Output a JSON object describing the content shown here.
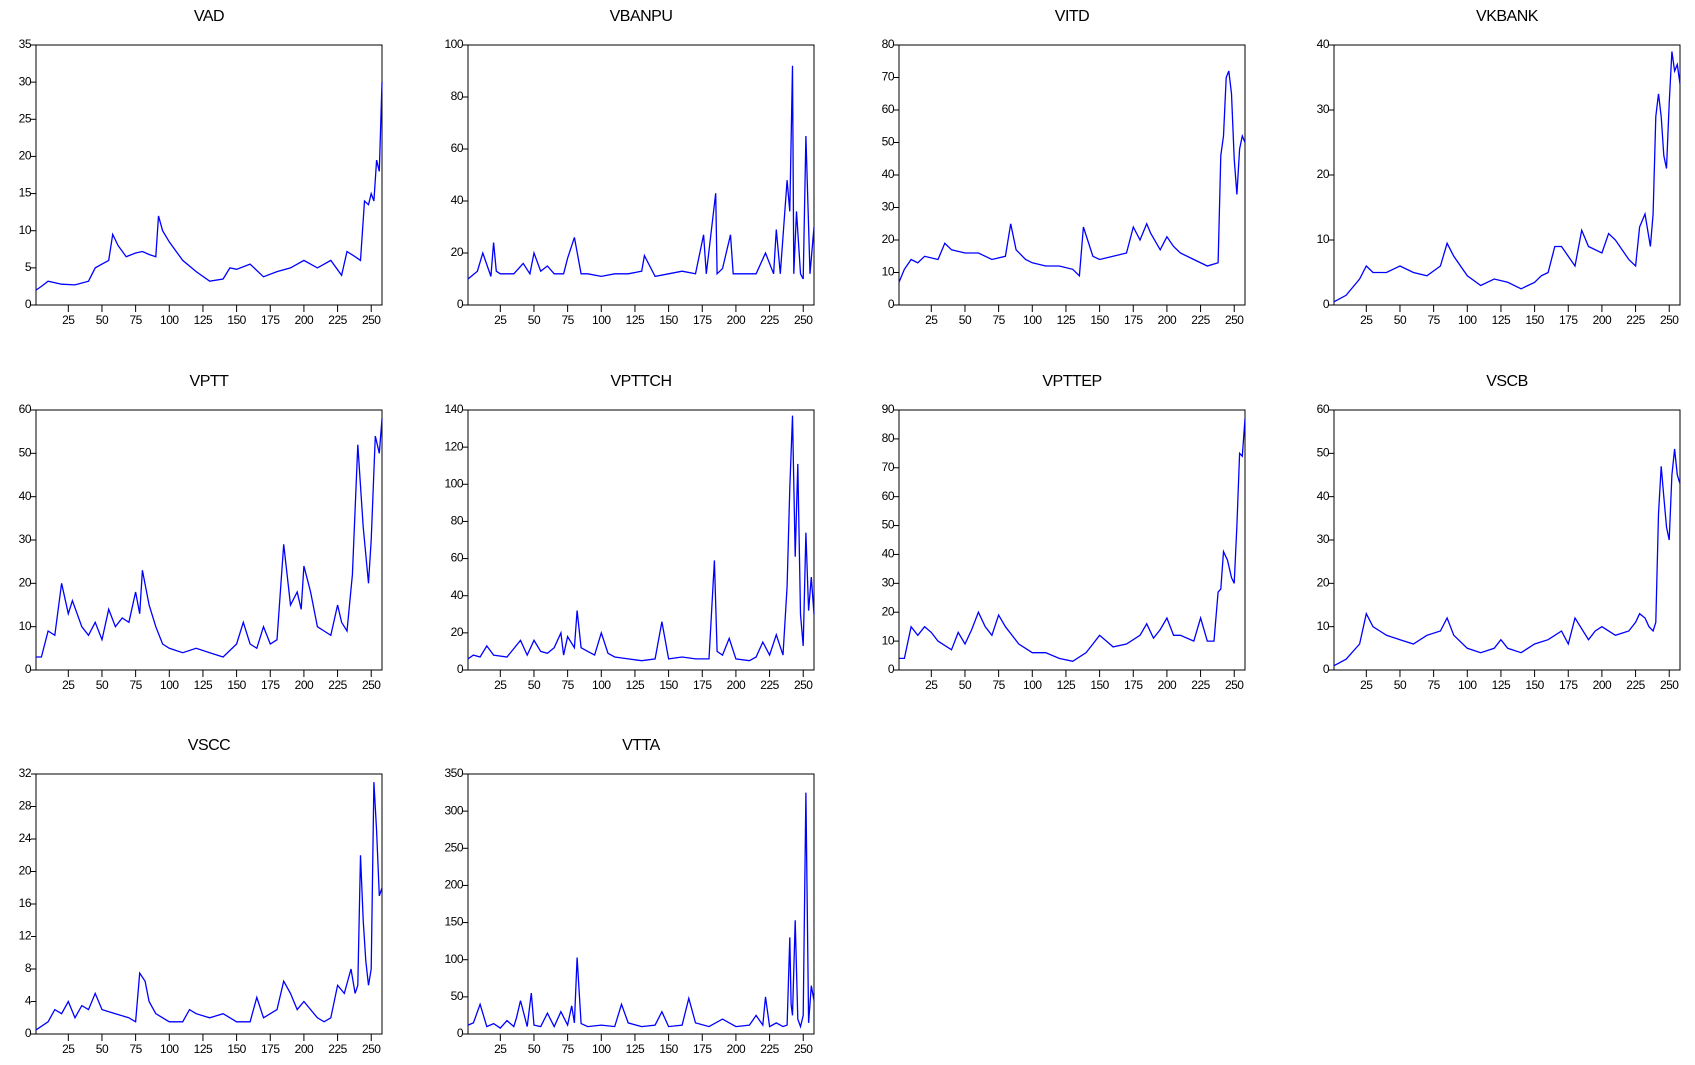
{
  "chart_data": [
    {
      "type": "line",
      "title": "VAD",
      "color": "#0000ff",
      "xlim": [
        1,
        258
      ],
      "xticks": [
        25,
        50,
        75,
        100,
        125,
        150,
        175,
        200,
        225,
        250
      ],
      "ylim": [
        0,
        35
      ],
      "yticks": [
        0,
        5,
        10,
        15,
        20,
        25,
        30,
        35
      ],
      "x": [
        1,
        5,
        10,
        20,
        30,
        40,
        45,
        50,
        55,
        58,
        62,
        68,
        75,
        80,
        85,
        90,
        92,
        95,
        100,
        110,
        120,
        130,
        140,
        145,
        150,
        160,
        170,
        180,
        190,
        200,
        210,
        220,
        228,
        232,
        238,
        242,
        245,
        248,
        250,
        252,
        254,
        256,
        258
      ],
      "values": [
        2,
        2.5,
        3.2,
        2.8,
        2.7,
        3.2,
        5,
        5.5,
        6,
        9.5,
        8,
        6.5,
        7,
        7.2,
        6.8,
        6.5,
        12,
        10,
        8.5,
        6,
        4.5,
        3.2,
        3.5,
        5,
        4.8,
        5.5,
        3.8,
        4.5,
        5,
        6,
        5,
        6,
        4,
        7.2,
        6.5,
        6,
        14,
        13.5,
        15,
        14,
        19.5,
        18,
        30
      ]
    },
    {
      "type": "line",
      "title": "VBANPU",
      "color": "#0000ff",
      "xlim": [
        1,
        258
      ],
      "xticks": [
        25,
        50,
        75,
        100,
        125,
        150,
        175,
        200,
        225,
        250
      ],
      "ylim": [
        0,
        100
      ],
      "yticks": [
        0,
        20,
        40,
        60,
        80,
        100
      ],
      "x": [
        1,
        8,
        12,
        18,
        20,
        22,
        25,
        35,
        42,
        47,
        50,
        55,
        60,
        65,
        72,
        75,
        80,
        85,
        90,
        100,
        110,
        120,
        130,
        132,
        140,
        150,
        160,
        170,
        176,
        178,
        185,
        186,
        190,
        196,
        198,
        205,
        215,
        222,
        228,
        230,
        233,
        238,
        240,
        242,
        243,
        245,
        248,
        250,
        252,
        255,
        258
      ],
      "values": [
        10,
        13,
        20,
        11,
        24,
        13,
        12,
        12,
        16,
        12,
        20,
        13,
        15,
        12,
        12,
        18,
        26,
        12,
        12,
        11,
        12,
        12,
        13,
        19,
        11,
        12,
        13,
        12,
        27,
        12,
        43,
        12,
        14,
        27,
        12,
        12,
        12,
        20,
        12,
        29,
        12,
        48,
        36,
        92,
        12,
        36,
        12,
        10,
        65,
        12,
        30
      ]
    },
    {
      "type": "line",
      "title": "VITD",
      "color": "#0000ff",
      "xlim": [
        1,
        258
      ],
      "xticks": [
        25,
        50,
        75,
        100,
        125,
        150,
        175,
        200,
        225,
        250
      ],
      "ylim": [
        0,
        80
      ],
      "yticks": [
        0,
        10,
        20,
        30,
        40,
        50,
        60,
        70,
        80
      ],
      "x": [
        1,
        5,
        10,
        15,
        20,
        30,
        35,
        40,
        50,
        60,
        70,
        80,
        84,
        88,
        95,
        100,
        110,
        120,
        130,
        135,
        138,
        145,
        150,
        160,
        170,
        175,
        180,
        185,
        188,
        195,
        200,
        205,
        210,
        220,
        230,
        238,
        240,
        242,
        244,
        246,
        248,
        250,
        252,
        254,
        256,
        258
      ],
      "values": [
        7,
        11,
        14,
        13,
        15,
        14,
        19,
        17,
        16,
        16,
        14,
        15,
        25,
        17,
        14,
        13,
        12,
        12,
        11,
        9,
        24,
        15,
        14,
        15,
        16,
        24,
        20,
        25,
        22,
        17,
        21,
        18,
        16,
        14,
        12,
        13,
        46,
        52,
        70,
        72,
        65,
        45,
        34,
        48,
        52,
        50
      ]
    },
    {
      "type": "line",
      "title": "VKBANK",
      "color": "#0000ff",
      "xlim": [
        1,
        258
      ],
      "xticks": [
        25,
        50,
        75,
        100,
        125,
        150,
        175,
        200,
        225,
        250
      ],
      "ylim": [
        0,
        40
      ],
      "yticks": [
        0,
        10,
        20,
        30,
        40
      ],
      "x": [
        1,
        10,
        20,
        25,
        30,
        40,
        50,
        60,
        70,
        80,
        85,
        90,
        100,
        110,
        120,
        130,
        140,
        150,
        155,
        160,
        165,
        170,
        180,
        185,
        190,
        200,
        205,
        210,
        220,
        225,
        228,
        232,
        236,
        238,
        240,
        242,
        244,
        246,
        248,
        250,
        252,
        254,
        256,
        258
      ],
      "values": [
        0.5,
        1.5,
        4,
        6,
        5,
        5,
        6,
        5,
        4.5,
        6,
        9.5,
        7.5,
        4.5,
        3,
        4,
        3.5,
        2.5,
        3.5,
        4.5,
        5,
        9,
        9,
        6,
        11.5,
        9,
        8,
        11,
        10,
        7,
        6,
        12,
        14,
        9,
        14,
        29,
        32.5,
        29,
        23,
        21,
        31,
        39,
        36,
        37,
        34
      ]
    },
    {
      "type": "line",
      "title": "VPTT",
      "color": "#0000ff",
      "xlim": [
        1,
        258
      ],
      "xticks": [
        25,
        50,
        75,
        100,
        125,
        150,
        175,
        200,
        225,
        250
      ],
      "ylim": [
        0,
        60
      ],
      "yticks": [
        0,
        10,
        20,
        30,
        40,
        50,
        60
      ],
      "x": [
        1,
        5,
        10,
        15,
        20,
        25,
        28,
        35,
        40,
        45,
        50,
        55,
        60,
        65,
        70,
        75,
        78,
        80,
        85,
        90,
        95,
        100,
        110,
        120,
        130,
        140,
        150,
        155,
        160,
        165,
        170,
        175,
        180,
        185,
        190,
        195,
        198,
        200,
        205,
        210,
        215,
        220,
        225,
        228,
        232,
        236,
        240,
        244,
        248,
        250,
        253,
        256,
        258
      ],
      "values": [
        3,
        3,
        9,
        8,
        20,
        13,
        16,
        10,
        8,
        11,
        7,
        14,
        10,
        12,
        11,
        18,
        13,
        23,
        15,
        10,
        6,
        5,
        4,
        5,
        4,
        3,
        6,
        11,
        6,
        5,
        10,
        6,
        7,
        29,
        15,
        18,
        14,
        24,
        18,
        10,
        9,
        8,
        15,
        11,
        9,
        22,
        52,
        33,
        20,
        30,
        54,
        50,
        58
      ]
    },
    {
      "type": "line",
      "title": "VPTTCH",
      "color": "#0000ff",
      "xlim": [
        1,
        258
      ],
      "xticks": [
        25,
        50,
        75,
        100,
        125,
        150,
        175,
        200,
        225,
        250
      ],
      "ylim": [
        0,
        140
      ],
      "yticks": [
        0,
        20,
        40,
        60,
        80,
        100,
        120,
        140
      ],
      "x": [
        1,
        5,
        10,
        15,
        20,
        30,
        40,
        45,
        50,
        55,
        60,
        65,
        70,
        72,
        75,
        80,
        82,
        85,
        90,
        95,
        100,
        105,
        110,
        120,
        130,
        140,
        145,
        150,
        160,
        170,
        180,
        184,
        186,
        190,
        195,
        200,
        210,
        215,
        220,
        225,
        230,
        235,
        238,
        240,
        242,
        244,
        246,
        248,
        250,
        252,
        254,
        256,
        258
      ],
      "values": [
        6,
        8,
        7,
        13,
        8,
        7,
        16,
        8,
        16,
        10,
        9,
        12,
        20,
        8,
        18,
        12,
        32,
        12,
        10,
        8,
        20,
        9,
        7,
        6,
        5,
        6,
        26,
        6,
        7,
        6,
        6,
        59,
        10,
        8,
        17,
        6,
        5,
        7,
        15,
        8,
        19,
        8,
        45,
        98,
        137,
        61,
        111,
        30,
        13,
        74,
        32,
        50,
        30
      ]
    },
    {
      "type": "line",
      "title": "VPTTEP",
      "color": "#0000ff",
      "xlim": [
        1,
        258
      ],
      "xticks": [
        25,
        50,
        75,
        100,
        125,
        150,
        175,
        200,
        225,
        250
      ],
      "ylim": [
        0,
        90
      ],
      "yticks": [
        0,
        10,
        20,
        30,
        40,
        50,
        60,
        70,
        80,
        90
      ],
      "x": [
        1,
        5,
        10,
        15,
        20,
        25,
        30,
        40,
        45,
        50,
        55,
        60,
        65,
        70,
        75,
        80,
        90,
        100,
        110,
        120,
        130,
        140,
        145,
        150,
        160,
        170,
        180,
        185,
        190,
        195,
        200,
        205,
        210,
        220,
        225,
        230,
        235,
        238,
        240,
        242,
        245,
        248,
        250,
        252,
        254,
        256,
        258
      ],
      "values": [
        4,
        4,
        15,
        12,
        15,
        13,
        10,
        7,
        13,
        9,
        14,
        20,
        15,
        12,
        19,
        15,
        9,
        6,
        6,
        4,
        3,
        6,
        9,
        12,
        8,
        9,
        12,
        16,
        11,
        14,
        18,
        12,
        12,
        10,
        18,
        10,
        10,
        27,
        28,
        41,
        38,
        32,
        30,
        50,
        75,
        74,
        87
      ]
    },
    {
      "type": "line",
      "title": "VSCB",
      "color": "#0000ff",
      "xlim": [
        1,
        258
      ],
      "xticks": [
        25,
        50,
        75,
        100,
        125,
        150,
        175,
        200,
        225,
        250
      ],
      "ylim": [
        0,
        60
      ],
      "yticks": [
        0,
        10,
        20,
        30,
        40,
        50,
        60
      ],
      "x": [
        1,
        10,
        20,
        25,
        30,
        35,
        40,
        50,
        60,
        70,
        80,
        85,
        90,
        100,
        110,
        120,
        125,
        130,
        140,
        150,
        160,
        170,
        175,
        180,
        190,
        195,
        200,
        210,
        220,
        225,
        228,
        232,
        235,
        238,
        240,
        242,
        244,
        246,
        248,
        250,
        252,
        254,
        256,
        258
      ],
      "values": [
        1,
        2.5,
        6,
        13,
        10,
        9,
        8,
        7,
        6,
        8,
        9,
        12,
        8,
        5,
        4,
        5,
        7,
        5,
        4,
        6,
        7,
        9,
        6,
        12,
        7,
        9,
        10,
        8,
        9,
        11,
        13,
        12,
        10,
        9,
        11,
        36,
        47,
        40,
        33,
        30,
        45,
        51,
        45,
        43
      ]
    },
    {
      "type": "line",
      "title": "VSCC",
      "color": "#0000ff",
      "xlim": [
        1,
        258
      ],
      "xticks": [
        25,
        50,
        75,
        100,
        125,
        150,
        175,
        200,
        225,
        250
      ],
      "ylim": [
        0,
        32
      ],
      "yticks": [
        0,
        4,
        8,
        12,
        16,
        20,
        24,
        28,
        32
      ],
      "x": [
        1,
        10,
        15,
        20,
        25,
        30,
        35,
        40,
        45,
        50,
        60,
        70,
        75,
        78,
        82,
        85,
        90,
        100,
        110,
        115,
        120,
        130,
        140,
        150,
        160,
        165,
        170,
        180,
        185,
        190,
        195,
        200,
        210,
        215,
        220,
        225,
        230,
        235,
        238,
        240,
        242,
        244,
        246,
        248,
        250,
        252,
        254,
        256,
        258
      ],
      "values": [
        0.5,
        1.5,
        3,
        2.5,
        4,
        2,
        3.5,
        3,
        5,
        3,
        2.5,
        2,
        1.5,
        7.5,
        6.5,
        4,
        2.5,
        1.5,
        1.5,
        3,
        2.5,
        2,
        2.5,
        1.5,
        1.5,
        4.5,
        2,
        3,
        6.5,
        5,
        3,
        4,
        2,
        1.5,
        2,
        6,
        5,
        8,
        5,
        6,
        22,
        14,
        9,
        6,
        8,
        31,
        25,
        17,
        18
      ]
    },
    {
      "type": "line",
      "title": "VTTA",
      "color": "#0000ff",
      "xlim": [
        1,
        258
      ],
      "xticks": [
        25,
        50,
        75,
        100,
        125,
        150,
        175,
        200,
        225,
        250
      ],
      "ylim": [
        0,
        350
      ],
      "yticks": [
        0,
        50,
        100,
        150,
        200,
        250,
        300,
        350
      ],
      "x": [
        1,
        5,
        10,
        15,
        20,
        25,
        30,
        35,
        37,
        40,
        45,
        48,
        50,
        55,
        60,
        65,
        70,
        75,
        78,
        80,
        82,
        85,
        90,
        100,
        110,
        115,
        120,
        130,
        140,
        145,
        150,
        160,
        165,
        170,
        180,
        190,
        200,
        210,
        215,
        220,
        222,
        225,
        230,
        235,
        238,
        240,
        241,
        242,
        244,
        246,
        248,
        250,
        252,
        254,
        256,
        258
      ],
      "values": [
        12,
        15,
        40,
        10,
        14,
        8,
        18,
        10,
        22,
        45,
        10,
        55,
        12,
        10,
        28,
        10,
        30,
        12,
        38,
        15,
        103,
        14,
        10,
        12,
        10,
        40,
        15,
        10,
        12,
        30,
        10,
        12,
        48,
        15,
        10,
        20,
        10,
        12,
        25,
        12,
        50,
        10,
        15,
        10,
        12,
        130,
        40,
        25,
        153,
        20,
        10,
        25,
        325,
        15,
        65,
        45
      ]
    }
  ]
}
